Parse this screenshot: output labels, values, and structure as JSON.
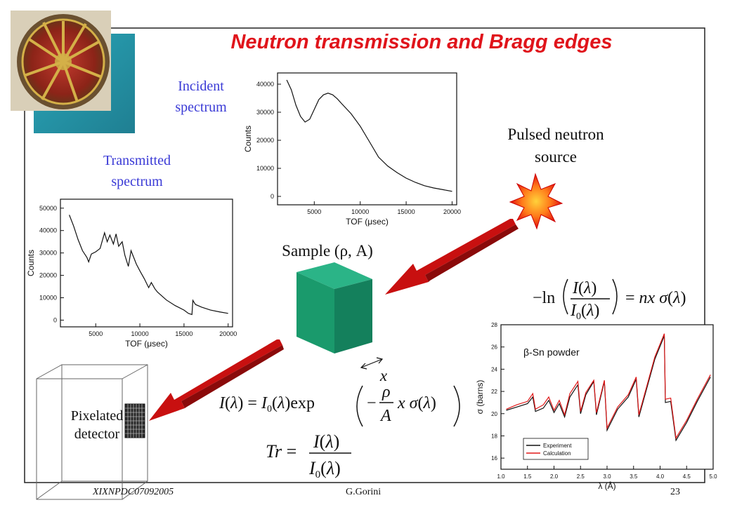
{
  "slide": {
    "title": "Neutron transmission and Bragg edges",
    "labels": {
      "incident": "Incident spectrum",
      "transmitted": "Transmitted spectrum",
      "source": "Pulsed neutron source",
      "sample": "Sample (ρ, A)",
      "detector": "Pixelated detector",
      "x": "x"
    },
    "equations": {
      "log_relation": "−ln( I(λ) / I0(λ) ) = nxσ(λ)",
      "intensity": "I(λ) = I0(λ) exp( −(ρ/A) xσ(λ) )",
      "transmission": "Tr = I(λ) / I0(λ)"
    },
    "footer": {
      "left": "XIXNPDC07092005",
      "center": "G.Gorini",
      "right": "23"
    },
    "colors": {
      "title": "#e0141b",
      "labels_blue": "#3a3ad6",
      "arrow": "#cc1010",
      "sample": "#1a9a6c"
    }
  },
  "chart_data": [
    {
      "type": "line",
      "title": "",
      "xlabel": "TOF (μsec)",
      "ylabel": "Counts",
      "xlim": [
        1000,
        20500
      ],
      "ylim": [
        -3000,
        44000
      ],
      "xticks": [
        5000,
        10000,
        15000,
        20000
      ],
      "yticks": [
        0,
        10000,
        20000,
        30000,
        40000
      ],
      "series": [
        {
          "x": [
            2000,
            2500,
            3000,
            3500,
            4000,
            4500,
            5000,
            5500,
            6000,
            6500,
            7000,
            7500,
            8000,
            9000,
            10000,
            11000,
            12000,
            13000,
            14000,
            15000,
            16000,
            17000,
            18000,
            19000,
            20000
          ],
          "y": [
            41500,
            38000,
            32500,
            28500,
            26500,
            27500,
            31000,
            34500,
            36200,
            36800,
            36200,
            34800,
            33000,
            29500,
            25000,
            19500,
            14000,
            10800,
            8500,
            6500,
            5000,
            3800,
            3000,
            2400,
            1800
          ]
        }
      ]
    },
    {
      "type": "line",
      "title": "",
      "xlabel": "TOF (μsec)",
      "ylabel": "Counts",
      "xlim": [
        1000,
        20500
      ],
      "ylim": [
        -3000,
        54000
      ],
      "xticks": [
        5000,
        10000,
        15000,
        20000
      ],
      "yticks": [
        0,
        10000,
        20000,
        30000,
        40000,
        50000
      ],
      "series": [
        {
          "x": [
            2000,
            2500,
            3000,
            3500,
            4000,
            4200,
            4500,
            5000,
            5500,
            6000,
            6300,
            6600,
            7000,
            7300,
            7600,
            8000,
            8300,
            8700,
            9000,
            9300,
            9600,
            10000,
            10500,
            11000,
            11300,
            11700,
            12000,
            13000,
            14000,
            15000,
            15500,
            15900,
            16000,
            16300,
            17000,
            18000,
            19000,
            20000
          ],
          "y": [
            47000,
            42000,
            36000,
            31000,
            28000,
            26000,
            29500,
            30500,
            32000,
            39000,
            35000,
            38000,
            34000,
            38500,
            33000,
            35000,
            29000,
            24000,
            31000,
            28000,
            25000,
            22000,
            18500,
            14500,
            16800,
            14000,
            12500,
            9000,
            6500,
            4500,
            3000,
            2500,
            8800,
            7000,
            5800,
            4500,
            3700,
            3000
          ]
        }
      ]
    },
    {
      "type": "line",
      "title": "",
      "annotation": "β-Sn powder",
      "xlabel": "λ (Å)",
      "ylabel": "σ (barns)",
      "xlim": [
        1.0,
        5.0
      ],
      "ylim": [
        15.0,
        28.0
      ],
      "xticks": [
        1.0,
        1.5,
        2.0,
        2.5,
        3.0,
        3.5,
        4.0,
        4.5,
        5.0
      ],
      "yticks": [
        16,
        18,
        20,
        22,
        24,
        26,
        28
      ],
      "series": [
        {
          "name": "Experiment",
          "color": "#111111",
          "x": [
            1.1,
            1.3,
            1.5,
            1.6,
            1.65,
            1.8,
            1.9,
            2.0,
            2.1,
            2.2,
            2.3,
            2.45,
            2.5,
            2.6,
            2.75,
            2.8,
            2.95,
            3.0,
            3.2,
            3.4,
            3.55,
            3.6,
            3.9,
            4.08,
            4.1,
            4.2,
            4.3,
            4.5,
            4.7,
            4.95
          ],
          "y": [
            20.3,
            20.6,
            20.9,
            21.5,
            20.2,
            20.5,
            21.2,
            20.1,
            20.9,
            19.7,
            21.5,
            22.6,
            20.0,
            21.7,
            22.9,
            19.9,
            22.9,
            18.5,
            20.4,
            21.5,
            23.1,
            19.7,
            24.9,
            27.0,
            21.0,
            21.1,
            17.6,
            19.2,
            21.1,
            23.3
          ]
        },
        {
          "name": "Calculation",
          "color": "#e01818",
          "x": [
            1.1,
            1.3,
            1.5,
            1.6,
            1.65,
            1.8,
            1.9,
            2.0,
            2.1,
            2.2,
            2.3,
            2.45,
            2.5,
            2.6,
            2.75,
            2.8,
            2.95,
            3.0,
            3.2,
            3.4,
            3.55,
            3.6,
            3.9,
            4.08,
            4.1,
            4.2,
            4.3,
            4.5,
            4.7,
            4.95
          ],
          "y": [
            20.4,
            20.8,
            21.1,
            21.8,
            20.4,
            20.8,
            21.5,
            20.3,
            21.2,
            19.9,
            21.8,
            22.9,
            20.2,
            21.9,
            23.0,
            20.1,
            23.0,
            18.7,
            20.6,
            21.7,
            23.3,
            19.9,
            25.1,
            27.2,
            21.3,
            21.4,
            17.8,
            19.4,
            21.3,
            23.5
          ]
        }
      ],
      "legend": {
        "placement": "bottom-left",
        "entries": [
          "Experiment",
          "Calculation"
        ]
      }
    }
  ]
}
